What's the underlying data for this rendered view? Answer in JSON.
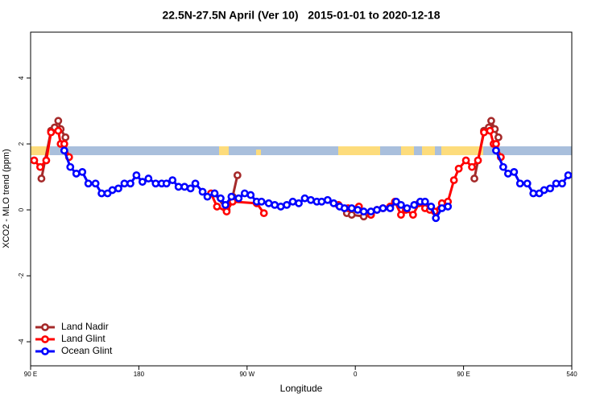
{
  "chart_data": {
    "type": "line",
    "title": "22.5N-27.5N April (Ver 10)   2015-01-01 to 2020-12-18",
    "x_label": "Longitude",
    "y_label": "XCO2 - MLO trend (ppm)",
    "xlim": [
      90,
      540
    ],
    "xticks": [
      {
        "value": 90,
        "label": "90 E"
      },
      180,
      {
        "value": 270,
        "label": "90 W"
      },
      {
        "value": 360,
        "label": "0"
      },
      {
        "value": 450,
        "label": "90 E"
      },
      540
    ],
    "ylim": [
      -4.73,
      5.39
    ],
    "yticks": [
      -4,
      -2,
      0,
      2,
      4
    ],
    "legend": "bottomleft",
    "series": [
      {
        "name": "Land Nadir",
        "color": "#a52a2a",
        "x": [
          99,
          107,
          110,
          113,
          115,
          119,
          null,
          243,
          253,
          258,
          262,
          null,
          353,
          357,
          367,
          373,
          null,
          459,
          467,
          471,
          473,
          476,
          479
        ],
        "values": [
          0.95,
          2.4,
          2.5,
          2.7,
          2.45,
          2.2,
          null,
          0.5,
          0,
          0.4,
          1.05,
          null,
          -0.1,
          -0.15,
          -0.2,
          -0.15,
          null,
          0.95,
          2.4,
          2.5,
          2.7,
          2.45,
          2.2
        ]
      },
      {
        "name": "Land Glint",
        "color": "#ff0000",
        "x": [
          93,
          98,
          103,
          107,
          113,
          115,
          118,
          122,
          null,
          240,
          245,
          253,
          258,
          278,
          284,
          null,
          346,
          354,
          363,
          373,
          378,
          383,
          389,
          393,
          398,
          402,
          408,
          413,
          418,
          422,
          426,
          432,
          437,
          442,
          446,
          452,
          457,
          462,
          467,
          472,
          475,
          477,
          481
        ],
        "values": [
          1.5,
          1.3,
          1.5,
          2.35,
          2.4,
          2.0,
          2.0,
          1.6,
          null,
          0.5,
          0.1,
          -0.05,
          0.25,
          0.2,
          -0.1,
          null,
          0.15,
          0.05,
          0.1,
          -0.15,
          0,
          0.05,
          0.1,
          0.25,
          -0.15,
          0,
          -0.15,
          0.2,
          0.05,
          0,
          -0.05,
          0.2,
          0.25,
          0.9,
          1.25,
          1.5,
          1.3,
          1.5,
          2.35,
          2.4,
          2.0,
          2.0,
          1.6
        ]
      },
      {
        "name": "Ocean Glint",
        "color": "#0000ff",
        "x": [
          118,
          123,
          128,
          133,
          138,
          144,
          149,
          154,
          158,
          163,
          168,
          173,
          178,
          183,
          188,
          194,
          199,
          203,
          208,
          213,
          218,
          223,
          227,
          233,
          237,
          243,
          248,
          252,
          257,
          263,
          268,
          273,
          278,
          282,
          288,
          293,
          298,
          303,
          308,
          313,
          318,
          323,
          328,
          332,
          337,
          342,
          347,
          351,
          357,
          362,
          367,
          373,
          378,
          383,
          389,
          394,
          398,
          403,
          409,
          414,
          418,
          423,
          427,
          432,
          437,
          null,
          477,
          483,
          487,
          492,
          497,
          503,
          508,
          513,
          517,
          522,
          527,
          532,
          537
        ],
        "values": [
          1.8,
          1.3,
          1.1,
          1.15,
          0.8,
          0.8,
          0.5,
          0.5,
          0.6,
          0.65,
          0.8,
          0.8,
          1.05,
          0.85,
          0.95,
          0.8,
          0.8,
          0.8,
          0.9,
          0.7,
          0.7,
          0.65,
          0.8,
          0.55,
          0.4,
          0.5,
          0.35,
          0.15,
          0.4,
          0.35,
          0.5,
          0.45,
          0.25,
          0.25,
          0.2,
          0.15,
          0.1,
          0.15,
          0.25,
          0.2,
          0.35,
          0.3,
          0.25,
          0.25,
          0.3,
          0.2,
          0.1,
          0.05,
          0.05,
          0,
          -0.05,
          -0.05,
          0,
          0.05,
          0.05,
          0.25,
          0.15,
          0.05,
          0.15,
          0.25,
          0.25,
          0.1,
          -0.25,
          0.05,
          0.1,
          null,
          1.8,
          1.3,
          1.1,
          1.15,
          0.8,
          0.8,
          0.5,
          0.5,
          0.6,
          0.65,
          0.8,
          0.8,
          1.05
        ]
      }
    ]
  }
}
